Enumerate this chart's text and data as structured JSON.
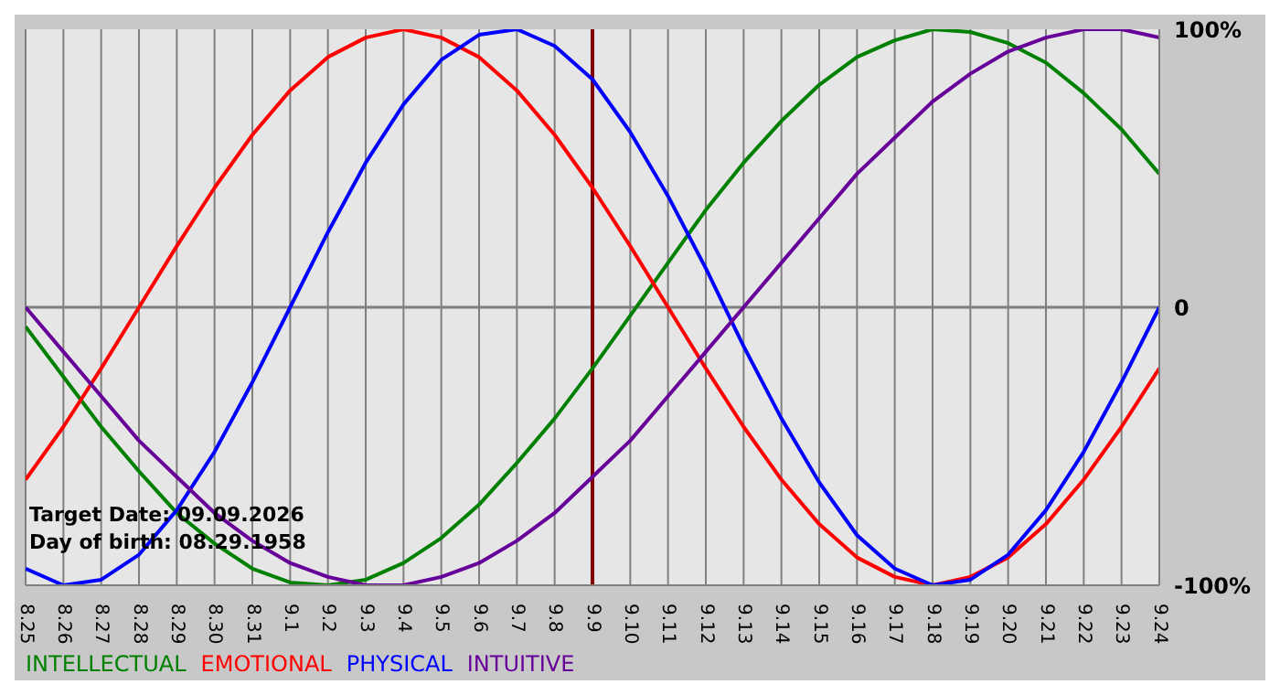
{
  "chart_data": {
    "type": "line",
    "categories": [
      "8.25",
      "8.26",
      "8.27",
      "8.28",
      "8.29",
      "8.30",
      "8.31",
      "9.1",
      "9.2",
      "9.3",
      "9.4",
      "9.5",
      "9.6",
      "9.7",
      "9.8",
      "9.9",
      "9.10",
      "9.11",
      "9.12",
      "9.13",
      "9.14",
      "9.15",
      "9.16",
      "9.17",
      "9.18",
      "9.19",
      "9.20",
      "9.21",
      "9.22",
      "9.23",
      "9.24"
    ],
    "series": [
      {
        "name": "INTELLECTUAL",
        "color": "#008000",
        "values": [
          -7,
          -25,
          -43,
          -59,
          -74,
          -85,
          -94,
          -99,
          -100,
          -98,
          -92,
          -83,
          -71,
          -56,
          -40,
          -22,
          -3,
          16,
          35,
          52,
          67,
          80,
          90,
          96,
          100,
          99,
          95,
          88,
          77,
          64,
          48
        ]
      },
      {
        "name": "EMOTIONAL",
        "color": "#ff0000",
        "values": [
          -62,
          -43,
          -22,
          0,
          22,
          43,
          62,
          78,
          90,
          97,
          100,
          97,
          90,
          78,
          62,
          43,
          22,
          0,
          -22,
          -43,
          -62,
          -78,
          -90,
          -97,
          -100,
          -97,
          -90,
          -78,
          -62,
          -43,
          -22
        ]
      },
      {
        "name": "PHYSICAL",
        "color": "#0000ff",
        "values": [
          -94,
          -100,
          -98,
          -89,
          -73,
          -52,
          -27,
          0,
          27,
          52,
          73,
          89,
          98,
          100,
          94,
          82,
          63,
          40,
          14,
          -14,
          -40,
          -63,
          -82,
          -94,
          -100,
          -98,
          -89,
          -73,
          -52,
          -27,
          0
        ]
      },
      {
        "name": "INTUITIVE",
        "color": "#660099",
        "values": [
          0,
          -16,
          -32,
          -48,
          -61,
          -74,
          -84,
          -92,
          -97,
          -100,
          -100,
          -97,
          -92,
          -84,
          -74,
          -61,
          -48,
          -32,
          -16,
          0,
          16,
          32,
          48,
          61,
          74,
          84,
          92,
          97,
          100,
          100,
          97
        ]
      }
    ],
    "ylim": [
      -100,
      100
    ],
    "yticks": [
      {
        "value": 100,
        "label": "100%"
      },
      0,
      {
        "value": -100,
        "label": "-100%"
      }
    ],
    "grid": "x",
    "legend": "bottom left",
    "marker": "none",
    "line_style": "solid",
    "ref_lines": [
      {
        "axis": "y",
        "value": 0,
        "color": "#808080"
      },
      {
        "axis": "x",
        "value": "9.9",
        "color": "#800000"
      }
    ],
    "annotations": [
      "Target Date: 09.09.2026",
      "Day of birth: 08.29.1958"
    ]
  }
}
